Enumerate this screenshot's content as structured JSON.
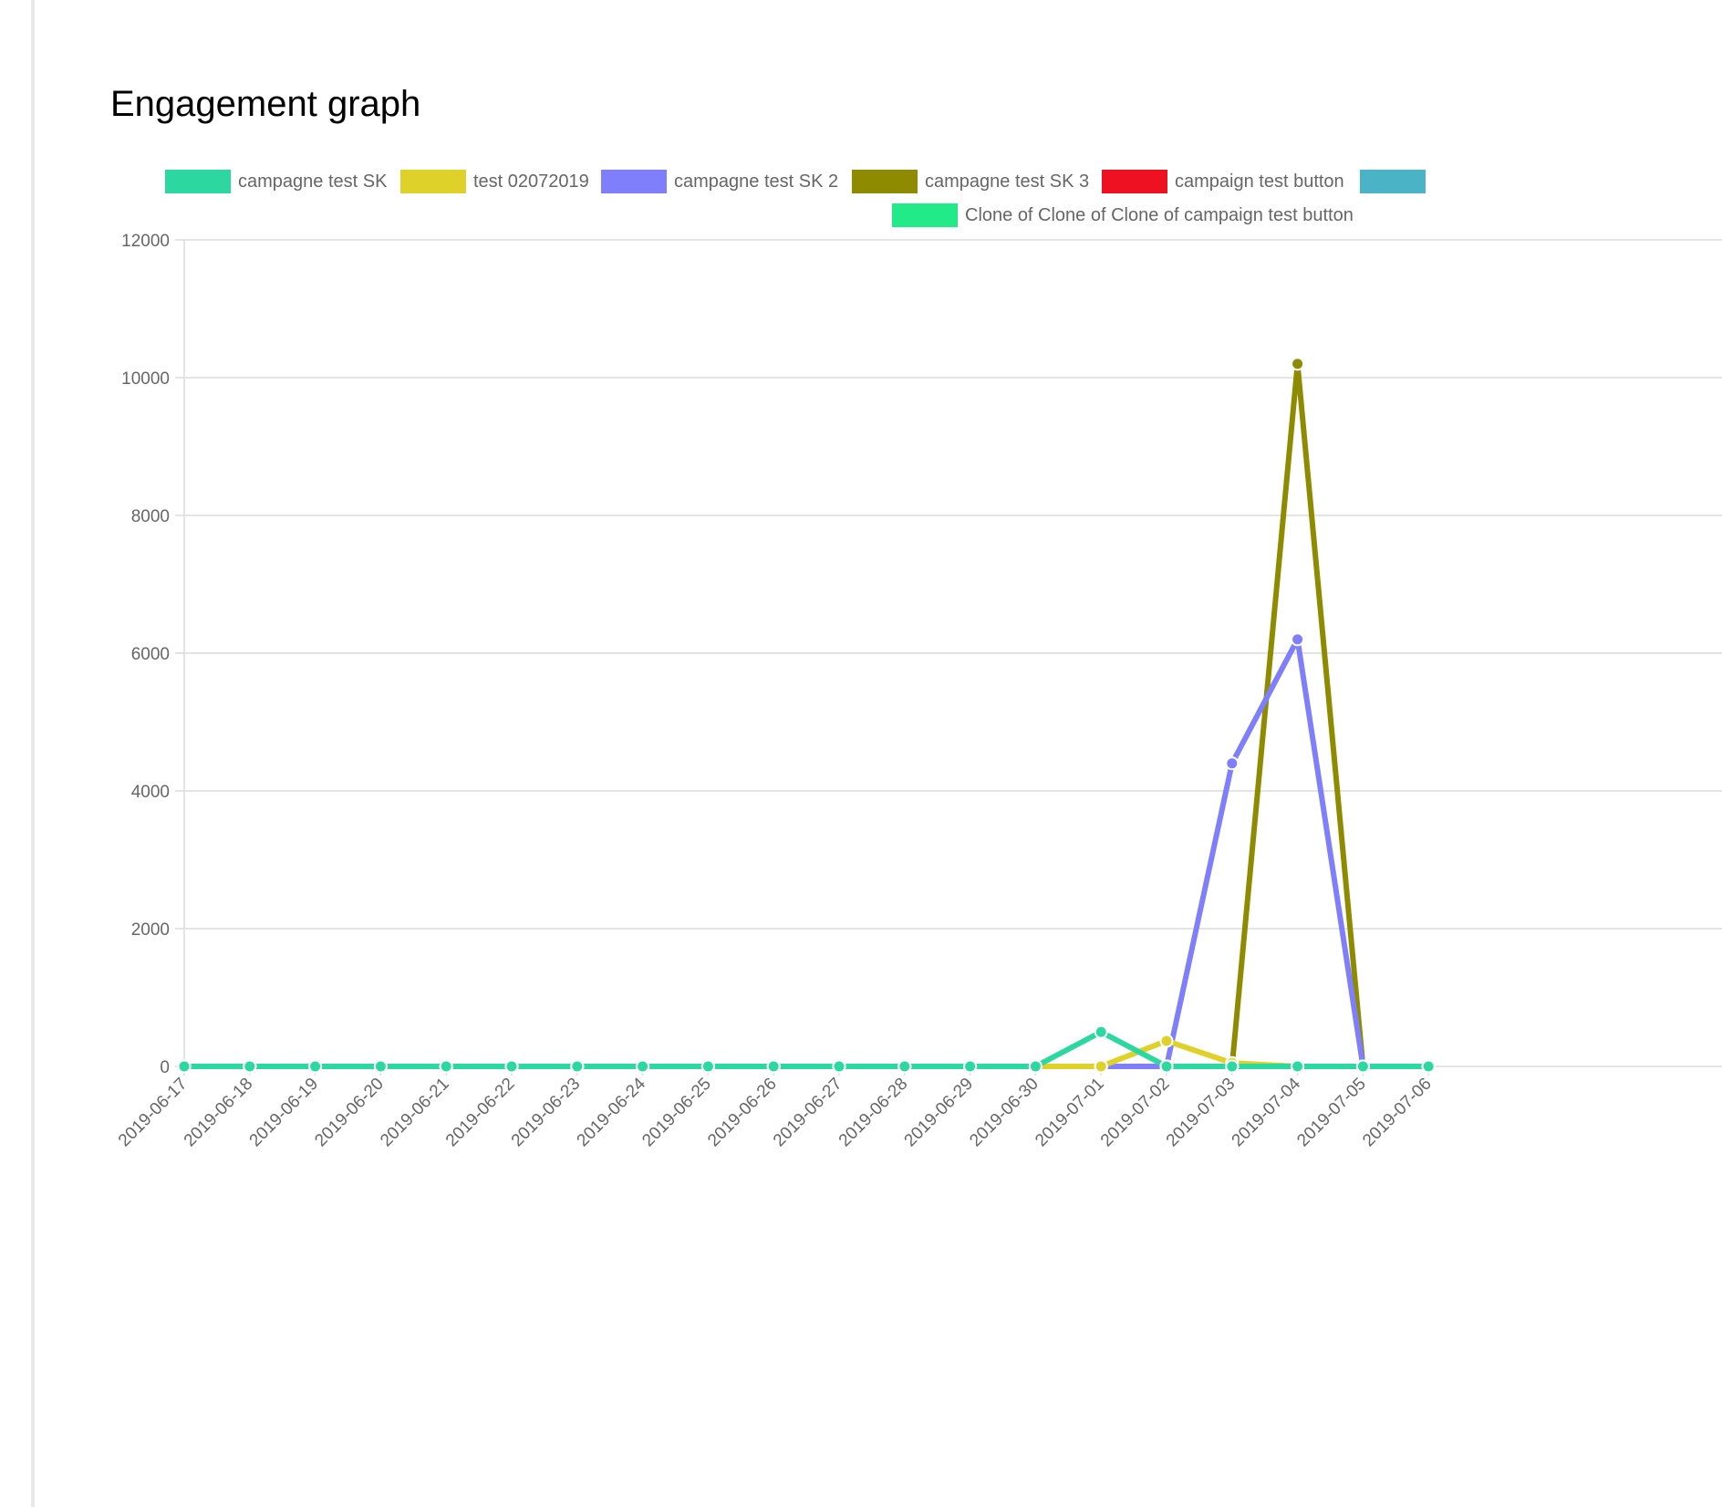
{
  "header": {
    "title": "Engagement graph"
  },
  "chart_data": {
    "type": "line",
    "title": "",
    "xlabel": "",
    "ylabel": "",
    "ylim": [
      0,
      12000
    ],
    "yticks": [
      0,
      2000,
      4000,
      6000,
      8000,
      10000,
      12000
    ],
    "grid": true,
    "legend_position": "top",
    "x": [
      "2019-06-17",
      "2019-06-18",
      "2019-06-19",
      "2019-06-20",
      "2019-06-21",
      "2019-06-22",
      "2019-06-23",
      "2019-06-24",
      "2019-06-25",
      "2019-06-26",
      "2019-06-27",
      "2019-06-28",
      "2019-06-29",
      "2019-06-30",
      "2019-07-01",
      "2019-07-02",
      "2019-07-03",
      "2019-07-04",
      "2019-07-05",
      "2019-07-06"
    ],
    "series": [
      {
        "name": "campagne test SK",
        "color": "#2dd8a0",
        "values": [
          0,
          0,
          0,
          0,
          0,
          0,
          0,
          0,
          0,
          0,
          0,
          0,
          0,
          0,
          500,
          0,
          0,
          0,
          0,
          0
        ]
      },
      {
        "name": "test 02072019",
        "color": "#ddd12a",
        "values": [
          0,
          0,
          0,
          0,
          0,
          0,
          0,
          0,
          0,
          0,
          0,
          0,
          0,
          0,
          0,
          370,
          50,
          0,
          0,
          0
        ]
      },
      {
        "name": "campagne test SK 2",
        "color": "#7f7ffc",
        "values": [
          0,
          0,
          0,
          0,
          0,
          0,
          0,
          0,
          0,
          0,
          0,
          0,
          0,
          0,
          0,
          0,
          4400,
          6200,
          0,
          0
        ]
      },
      {
        "name": "campagne test SK 3",
        "color": "#8e8b00",
        "values": [
          0,
          0,
          0,
          0,
          0,
          0,
          0,
          0,
          0,
          0,
          0,
          0,
          0,
          0,
          0,
          0,
          0,
          10200,
          0,
          0
        ]
      },
      {
        "name": "campaign test button",
        "color": "#ee1122",
        "values": [
          0,
          0,
          0,
          0,
          0,
          0,
          0,
          0,
          0,
          0,
          0,
          0,
          0,
          0,
          0,
          0,
          0,
          0,
          0,
          0
        ]
      },
      {
        "name": "",
        "color": "#4ab3c6",
        "values": [
          0,
          0,
          0,
          0,
          0,
          0,
          0,
          0,
          0,
          0,
          0,
          0,
          0,
          0,
          0,
          0,
          0,
          0,
          0,
          0
        ]
      },
      {
        "name": "Clone of Clone of Clone of campaign test button",
        "color": "#22ea88",
        "values": [
          0,
          0,
          0,
          0,
          0,
          0,
          0,
          0,
          0,
          0,
          0,
          0,
          0,
          0,
          0,
          0,
          0,
          0,
          0,
          0
        ]
      }
    ]
  }
}
